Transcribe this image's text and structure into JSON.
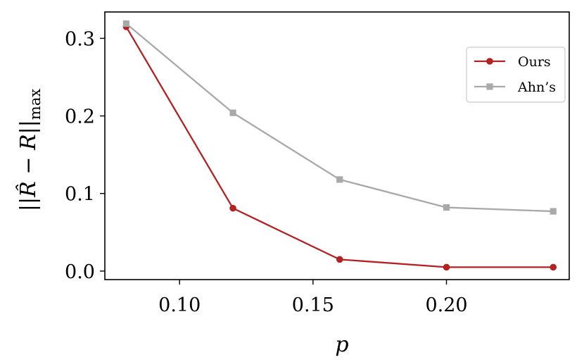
{
  "chart_data": {
    "type": "line",
    "xlabel": "p",
    "ylabel_parts": [
      "||",
      "R̂",
      " − ",
      "R",
      "||",
      "max"
    ],
    "xlim": [
      0.072,
      0.246
    ],
    "ylim": [
      -0.011,
      0.334
    ],
    "xticks": [
      {
        "value": 0.1,
        "label": "0.10"
      },
      {
        "value": 0.15,
        "label": "0.15"
      },
      {
        "value": 0.2,
        "label": "0.20"
      }
    ],
    "yticks": [
      {
        "value": 0.0,
        "label": "0.0"
      },
      {
        "value": 0.1,
        "label": "0.1"
      },
      {
        "value": 0.2,
        "label": "0.2"
      },
      {
        "value": 0.3,
        "label": "0.3"
      }
    ],
    "grid": false,
    "legend": {
      "position": "top-right"
    },
    "series": [
      {
        "name": "Ours",
        "color": "#b22222",
        "marker": "circle",
        "x": [
          0.08,
          0.12,
          0.16,
          0.2,
          0.24
        ],
        "y": [
          0.315,
          0.081,
          0.015,
          0.005,
          0.005
        ]
      },
      {
        "name": "Ahn’s",
        "color": "#a9a9a9",
        "marker": "square",
        "x": [
          0.08,
          0.12,
          0.16,
          0.2,
          0.24
        ],
        "y": [
          0.319,
          0.204,
          0.118,
          0.082,
          0.077
        ]
      }
    ]
  }
}
